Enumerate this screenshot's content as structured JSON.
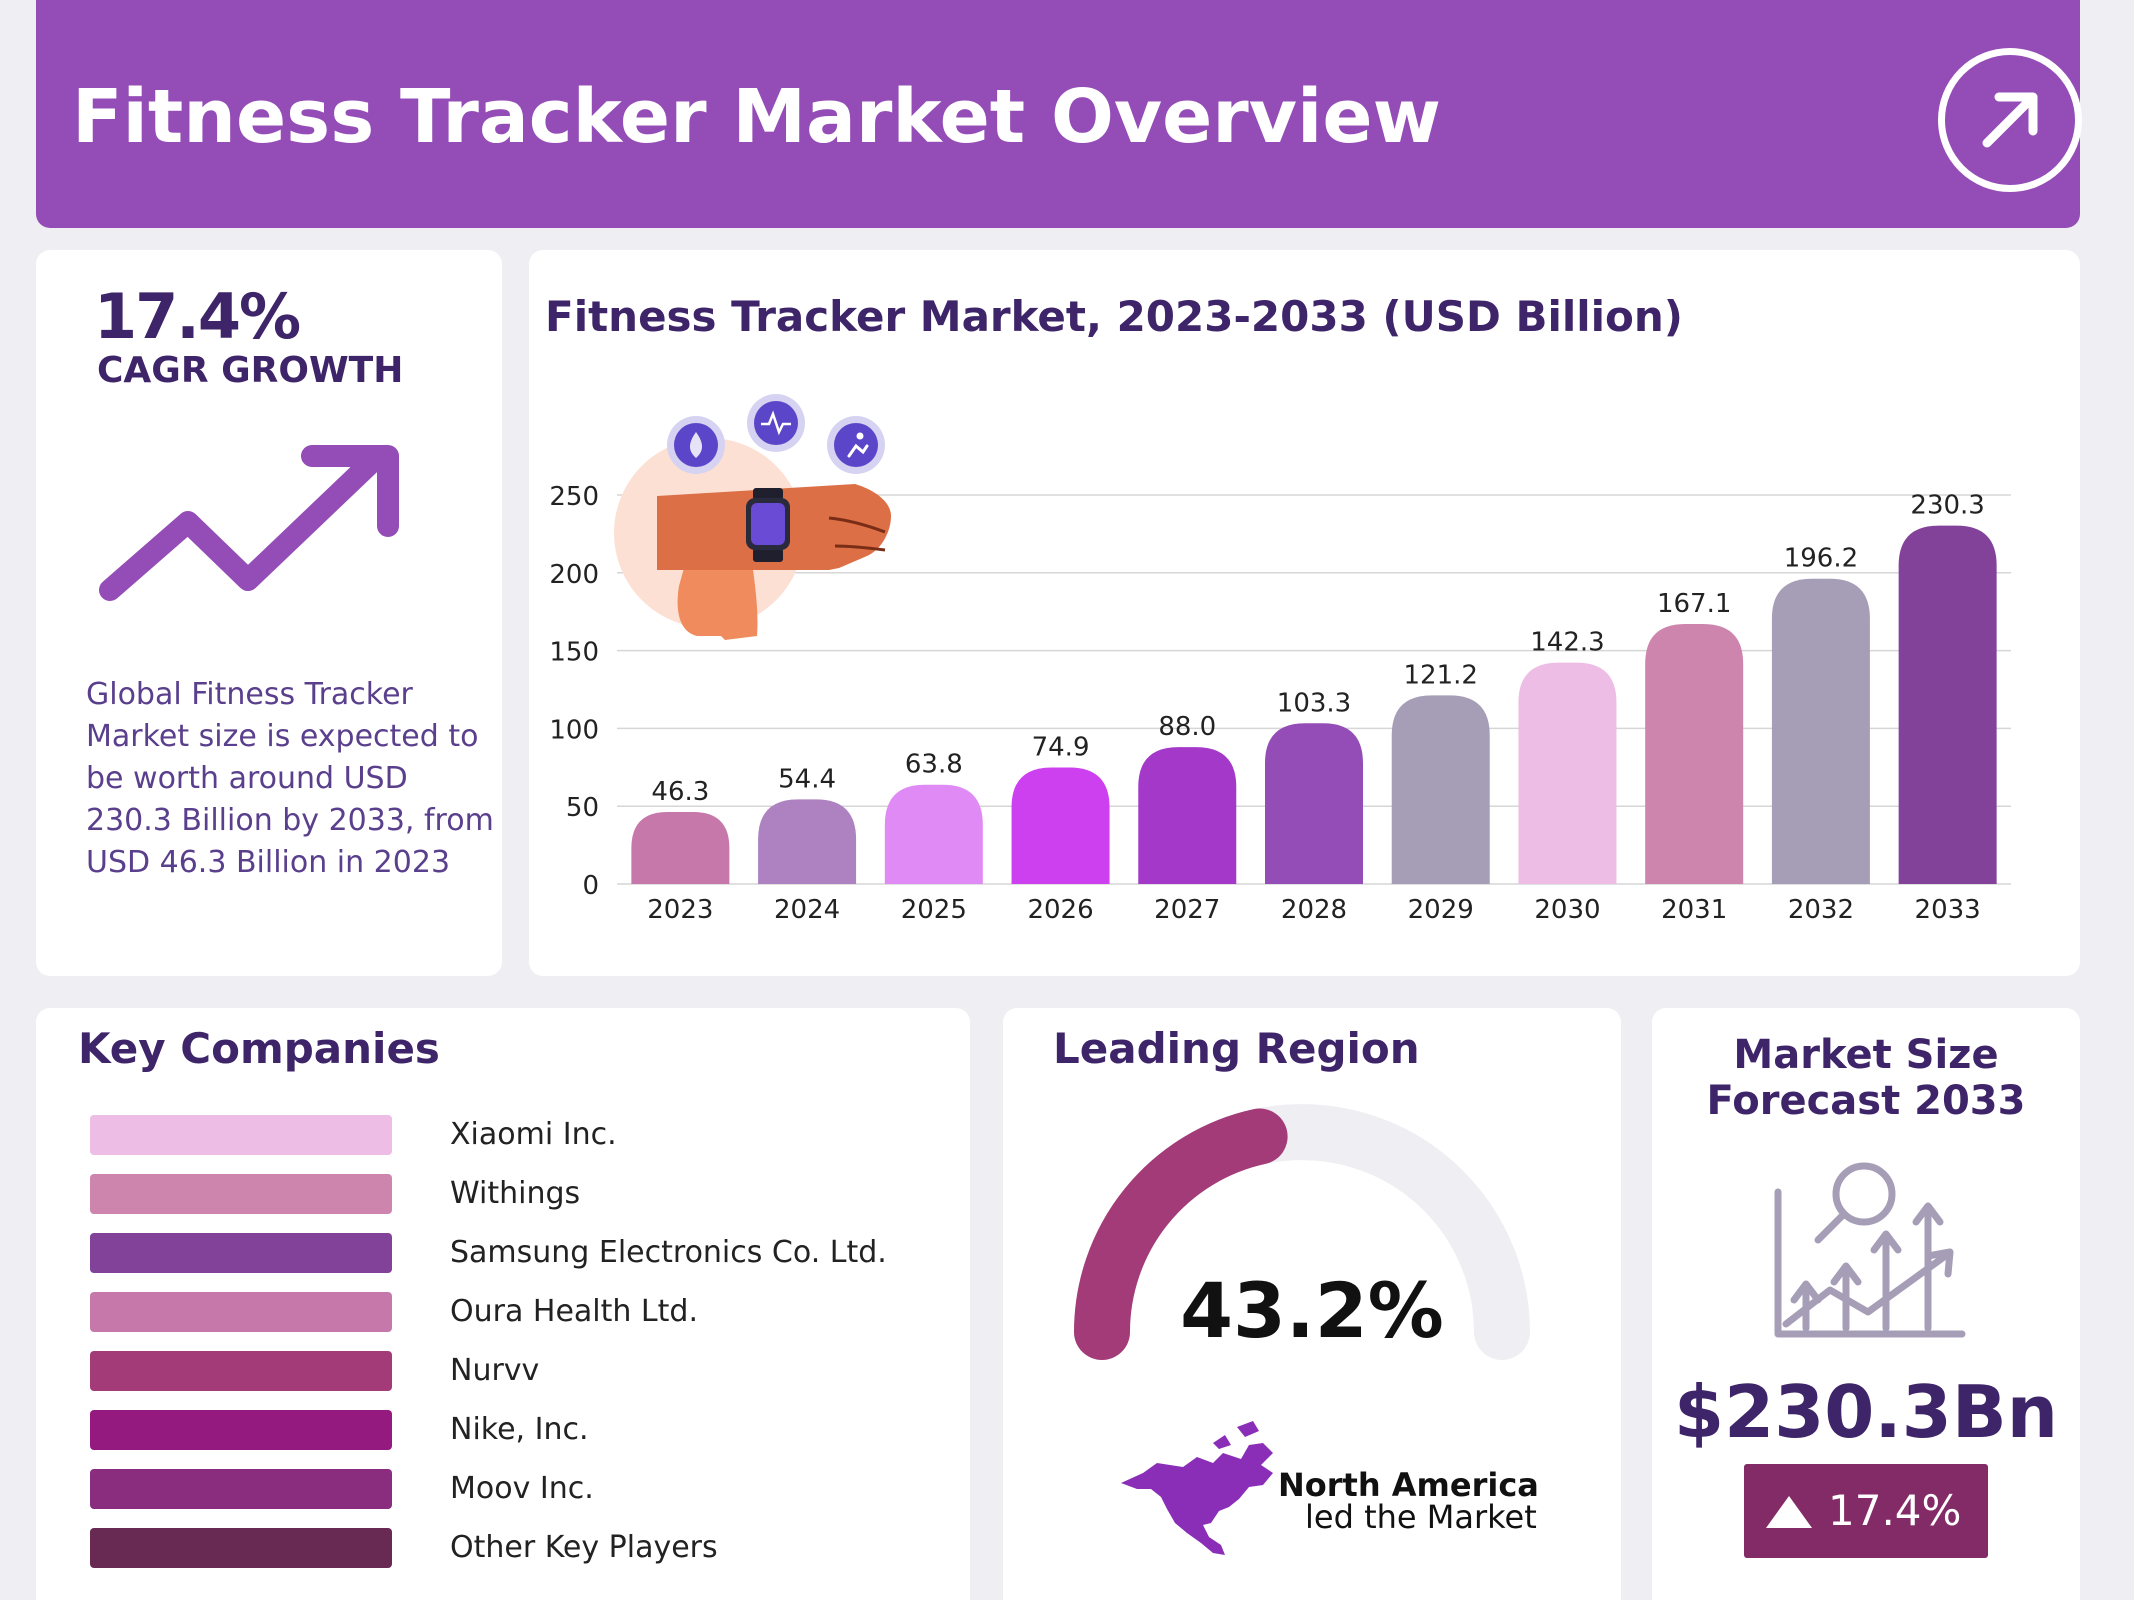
{
  "header": {
    "title": "Fitness Tracker Market Overview",
    "open_icon": "arrow-up-right-icon"
  },
  "cagr": {
    "value": "17.4%",
    "label": "CAGR GROWTH",
    "icon": "trend-up-arrow-icon",
    "description": "Global Fitness Tracker Market size is expected to be worth around USD 230.3 Billion by 2033, from USD 46.3 Billion in 2023"
  },
  "chart_data": {
    "type": "bar",
    "title": "Fitness Tracker Market, 2023-2033 (USD Billion)",
    "categories": [
      "2023",
      "2024",
      "2025",
      "2026",
      "2027",
      "2028",
      "2029",
      "2030",
      "2031",
      "2032",
      "2033"
    ],
    "values": [
      46.3,
      54.4,
      63.8,
      74.9,
      88.0,
      103.3,
      121.2,
      142.3,
      167.1,
      196.2,
      230.3
    ],
    "value_labels": [
      "46.3",
      "54.4",
      "63.8",
      "74.9",
      "88.0",
      "103.3",
      "121.2",
      "142.3",
      "167.1",
      "196.2",
      "230.3"
    ],
    "colors": [
      "#c678ab",
      "#ae82c0",
      "#e08af5",
      "#cd40f0",
      "#a338c9",
      "#944db6",
      "#a69db7",
      "#edbde5",
      "#cd85ad",
      "#a69db7",
      "#83429a"
    ],
    "yticks": [
      0,
      50,
      100,
      150,
      200,
      250
    ],
    "ylim": [
      0,
      250
    ],
    "grid": true,
    "illustration": "smartwatch-wrist-illustration"
  },
  "companies": {
    "title": "Key Companies",
    "items": [
      {
        "name": "Xiaomi Inc.",
        "color": "#edbde5"
      },
      {
        "name": "Withings",
        "color": "#cd85ad"
      },
      {
        "name": "Samsung Electronics Co. Ltd.",
        "color": "#83429a"
      },
      {
        "name": "Oura Health Ltd.",
        "color": "#c678ab"
      },
      {
        "name": "Nurvv",
        "color": "#a33b79"
      },
      {
        "name": "Nike, Inc.",
        "color": "#951a80"
      },
      {
        "name": "Moov Inc.",
        "color": "#8b2d7e"
      },
      {
        "name": "Other Key Players",
        "color": "#682952"
      }
    ]
  },
  "region": {
    "title": "Leading Region",
    "share": "43.2%",
    "share_fraction": 0.432,
    "gauge_color": "#a33b79",
    "track_color": "#efeef2",
    "name": "North America",
    "subtitle": "led the Market",
    "map_icon": "north-america-map-icon",
    "map_color": "#8a2eb8"
  },
  "market": {
    "title": "Market Size Forecast 2033",
    "value": "$230.3Bn",
    "growth": "17.4%",
    "icon": "analytics-magnifier-icon"
  }
}
